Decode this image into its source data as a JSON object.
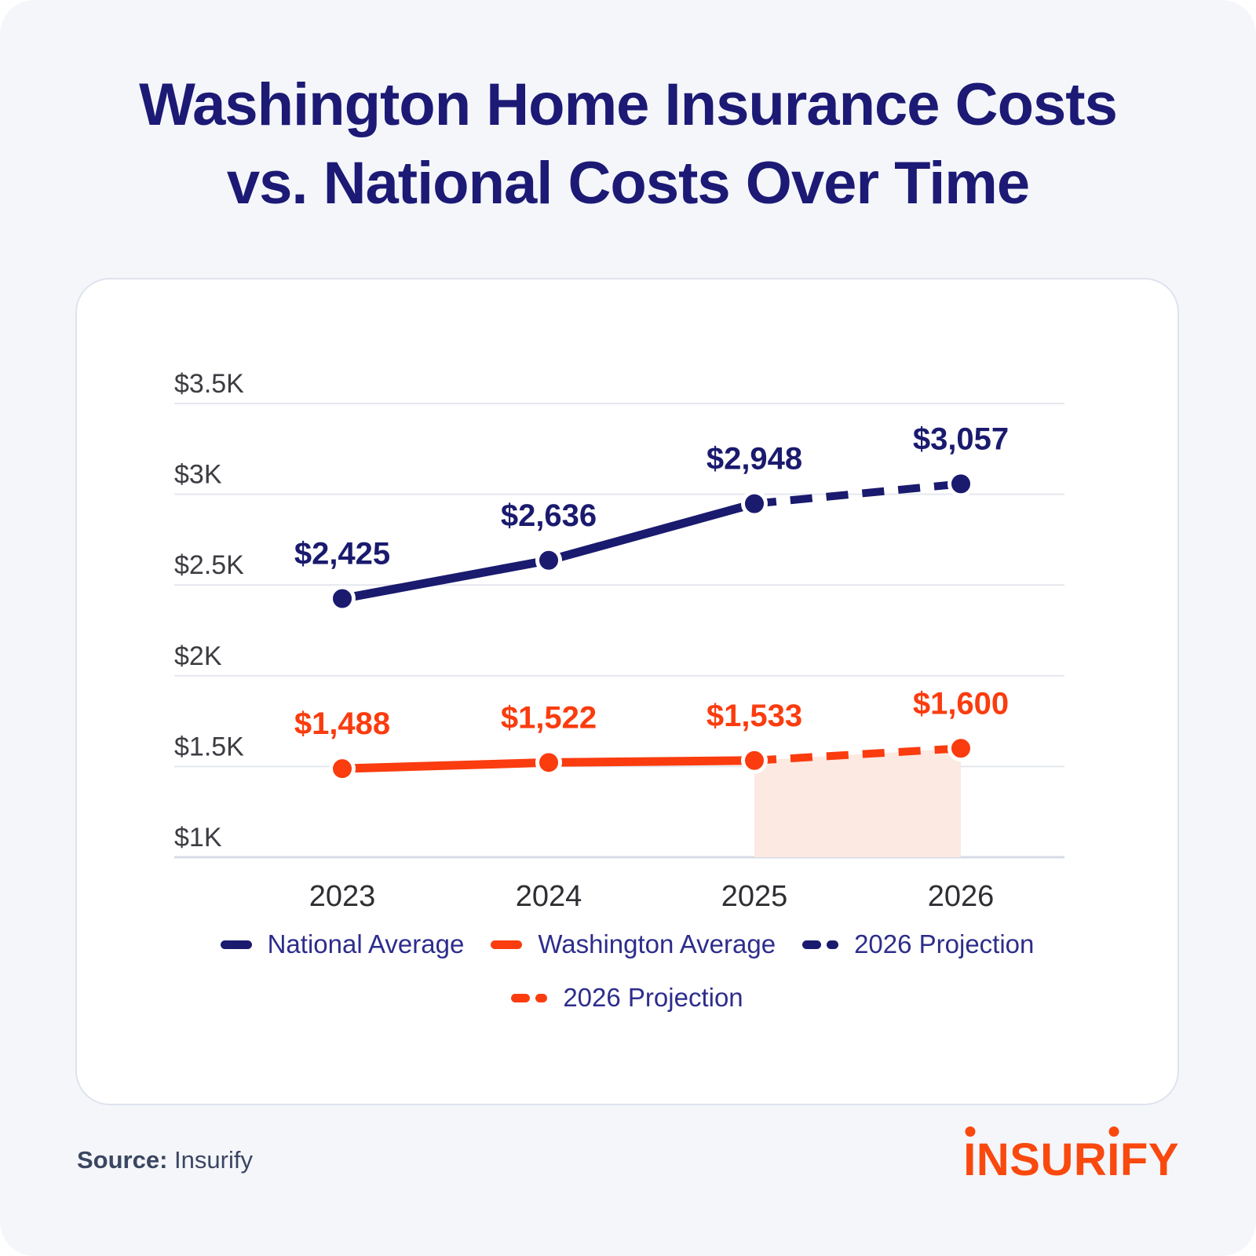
{
  "page": {
    "title_line1": "Washington Home Insurance Costs",
    "title_line2": "vs. National Costs Over Time"
  },
  "colors": {
    "navy": "#1A1A6E",
    "orange": "#FA3C0F",
    "title": "#1C1A75",
    "legend_text": "#2D2D8C",
    "background": "#F5F6FA",
    "card_background": "#FFFFFF",
    "card_border": "#DEE3EE",
    "gridline": "#E5E7EE",
    "axis_line": "#D7DBE6",
    "projection_fill": "#FCE9E2",
    "logo_orange": "#F9490F"
  },
  "chart_data": {
    "type": "line",
    "title": "Washington Home Insurance Costs vs. National Costs Over Time",
    "categories": [
      "2023",
      "2024",
      "2025",
      "2026"
    ],
    "series": [
      {
        "name": "National Average",
        "values": [
          2425,
          2636,
          2948,
          3057
        ],
        "data_labels": [
          "$2,425",
          "$2,636",
          "$2,948",
          "$3,057"
        ],
        "color": "#1A1A6E",
        "style": "solid-then-dashed",
        "projection_from_index": 2,
        "projection_area_fill": false
      },
      {
        "name": "Washington Average",
        "values": [
          1488,
          1522,
          1533,
          1600
        ],
        "data_labels": [
          "$1,488",
          "$1,522",
          "$1,533",
          "$1,600"
        ],
        "color": "#FA3C0F",
        "style": "solid-then-dashed",
        "projection_from_index": 2,
        "projection_area_fill": true
      }
    ],
    "y_ticks": [
      {
        "value": 3500,
        "label": "$3.5K"
      },
      {
        "value": 3000,
        "label": "$3K"
      },
      {
        "value": 2500,
        "label": "$2.5K"
      },
      {
        "value": 2000,
        "label": "$2K"
      },
      {
        "value": 1500,
        "label": "$1.5K"
      },
      {
        "value": 1000,
        "label": "$1K"
      }
    ],
    "ylim": [
      1000,
      3500
    ],
    "grid": "horizontal",
    "legend_position": "bottom"
  },
  "legend": {
    "row1": [
      {
        "label": "National Average",
        "swatch": "solid",
        "color": "#1A1A6E"
      },
      {
        "label": "Washington Average",
        "swatch": "solid",
        "color": "#FA3C0F"
      },
      {
        "label": "2026 Projection",
        "swatch": "dashed",
        "color": "#1A1A6E"
      }
    ],
    "row2": [
      {
        "label": "2026 Projection",
        "swatch": "dashed",
        "color": "#FA3C0F"
      }
    ]
  },
  "footer": {
    "source_label": "Source:",
    "source_value": "Insurify",
    "logo_text": "INSURIFY"
  }
}
